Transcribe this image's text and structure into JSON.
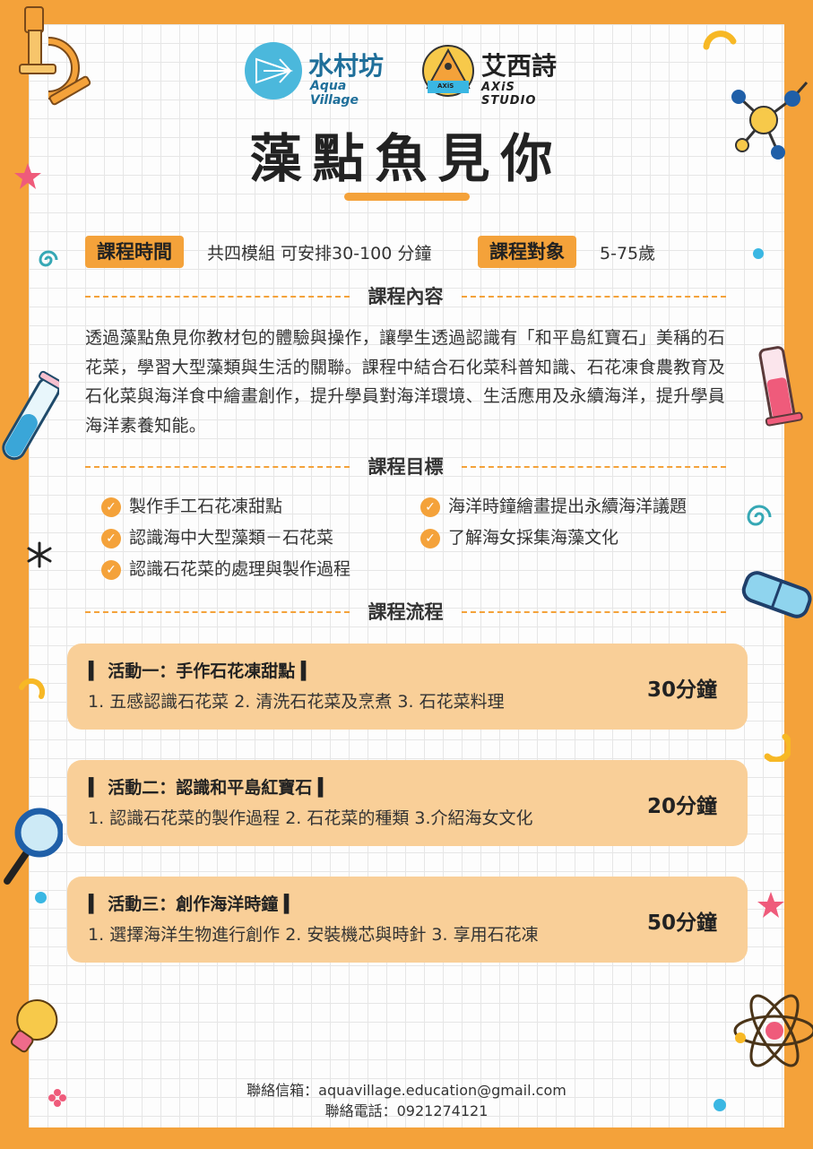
{
  "header": {
    "logo1": {
      "name_zh": "水村坊",
      "name_en": "Aqua Village"
    },
    "logo2": {
      "badge": "AXiS",
      "name_zh": "艾西詩",
      "name_en": "AXiS STUDIO"
    },
    "title": "藻點魚見你"
  },
  "info": {
    "time_label": "課程時間",
    "time_value": "共四模組 可安排30-100 分鐘",
    "target_label": "課程對象",
    "target_value": "5-75歲"
  },
  "content": {
    "heading": "課程內容",
    "text": "透過藻點魚見你教材包的體驗與操作，讓學生透過認識有「和平島紅寶石」美稱的石花菜，學習大型藻類與生活的關聯。課程中結合石化菜科普知識、石花凍食農教育及石化菜與海洋食中繪畫創作，提升學員對海洋環境、生活應用及永續海洋，提升學員海洋素養知能。"
  },
  "goals": {
    "heading": "課程目標",
    "items": [
      "製作手工石花凍甜點",
      "海洋時鐘繪畫提出永續海洋議題",
      "認識海中大型藻類－石花菜",
      "了解海女採集海藻文化",
      "認識石花菜的處理與製作過程"
    ]
  },
  "flow": {
    "heading": "課程流程",
    "activities": [
      {
        "title": "▍ 活動一：手作石花凍甜點 ▍",
        "steps": "1. 五感認識石花菜  2. 清洗石花菜及烹煮  3. 石花菜料理",
        "duration": "30分鐘"
      },
      {
        "title": "▍ 活動二：認識和平島紅寶石 ▍",
        "steps": "1. 認識石花菜的製作過程   2. 石花菜的種類   3.介紹海女文化",
        "duration": "20分鐘"
      },
      {
        "title": "▍ 活動三：創作海洋時鐘 ▍",
        "steps": "1. 選擇海洋生物進行創作   2. 安裝機芯與時針   3. 享用石花凍",
        "duration": "50分鐘"
      }
    ]
  },
  "contact": {
    "email": "聯絡信箱：aquavillage.education@gmail.com",
    "phone": "聯絡電話：0921274121"
  },
  "colors": {
    "accent": "#f4a23a",
    "card": "#f9cf98",
    "logo_blue": "#4bb8dc"
  }
}
